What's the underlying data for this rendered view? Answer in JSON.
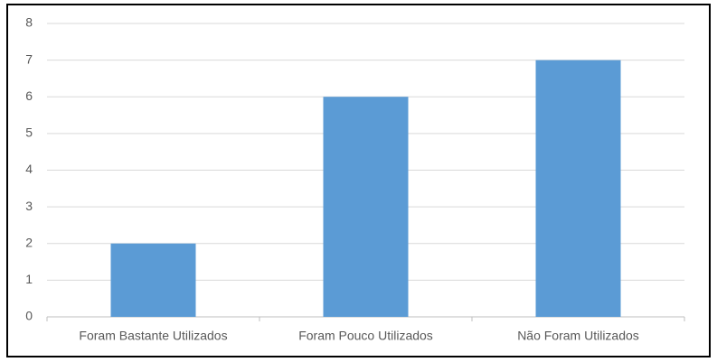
{
  "chart_data": {
    "type": "bar",
    "categories": [
      "Foram Bastante Utilizados",
      "Foram Pouco Utilizados",
      "Não Foram Utilizados"
    ],
    "values": [
      2,
      6,
      7
    ],
    "color": "#5b9bd5",
    "ylim": [
      0,
      8
    ],
    "yticks": [
      0,
      1,
      2,
      3,
      4,
      5,
      6,
      7,
      8
    ],
    "grid": true
  }
}
